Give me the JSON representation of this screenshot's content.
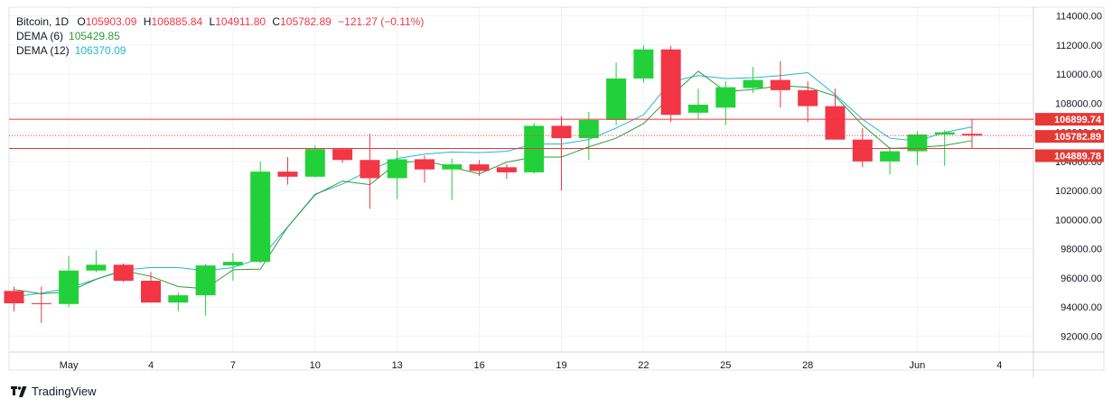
{
  "legend": {
    "symbol": "Bitcoin, 1D",
    "o_label": "O",
    "o_value": "105903.09",
    "h_label": "H",
    "h_value": "106885.84",
    "l_label": "L",
    "l_value": "104911.80",
    "c_label": "C",
    "c_value": "105782.89",
    "change": "−121.27 (−0.11%)",
    "dema6_label": "DEMA (6)",
    "dema6_value": "105429.85",
    "dema12_label": "DEMA (12)",
    "dema12_value": "106370.09"
  },
  "brand": {
    "name": "TradingView",
    "icon": "tradingview-logo-icon"
  },
  "colors": {
    "up": "#22d13a",
    "down": "#f23645",
    "dema6": "#2e9c3a",
    "dema12": "#22b8cf",
    "price_line": "#e53935",
    "grid": "#f0f3fa"
  },
  "chart_data": {
    "type": "candlestick",
    "x_ticks": [
      {
        "i": 2,
        "label": "May"
      },
      {
        "i": 5,
        "label": "4"
      },
      {
        "i": 8,
        "label": "7"
      },
      {
        "i": 11,
        "label": "10"
      },
      {
        "i": 14,
        "label": "13"
      },
      {
        "i": 17,
        "label": "16"
      },
      {
        "i": 20,
        "label": "19"
      },
      {
        "i": 23,
        "label": "22"
      },
      {
        "i": 26,
        "label": "25"
      },
      {
        "i": 29,
        "label": "28"
      },
      {
        "i": 33,
        "label": "Jun"
      },
      {
        "i": 36,
        "label": "4"
      }
    ],
    "y_ticks": [
      "92000.00",
      "94000.00",
      "96000.00",
      "98000.00",
      "100000.00",
      "102000.00",
      "104000.00",
      "106000.00",
      "108000.00",
      "110000.00",
      "112000.00",
      "114000.00"
    ],
    "ylim": [
      90900,
      114600
    ],
    "candles": [
      {
        "o": 95100,
        "h": 95400,
        "l": 93700,
        "c": 94250
      },
      {
        "o": 94250,
        "h": 95400,
        "l": 92900,
        "c": 94200
      },
      {
        "o": 94200,
        "h": 97500,
        "l": 94000,
        "c": 96500
      },
      {
        "o": 96500,
        "h": 97900,
        "l": 96400,
        "c": 96900
      },
      {
        "o": 96900,
        "h": 97000,
        "l": 95700,
        "c": 95800
      },
      {
        "o": 95800,
        "h": 96400,
        "l": 94300,
        "c": 94300
      },
      {
        "o": 94300,
        "h": 95000,
        "l": 93700,
        "c": 94800
      },
      {
        "o": 94800,
        "h": 96950,
        "l": 93400,
        "c": 96850
      },
      {
        "o": 96850,
        "h": 97700,
        "l": 95800,
        "c": 97100
      },
      {
        "o": 97100,
        "h": 104000,
        "l": 97000,
        "c": 103300
      },
      {
        "o": 103300,
        "h": 104300,
        "l": 102400,
        "c": 102950
      },
      {
        "o": 102950,
        "h": 105100,
        "l": 102900,
        "c": 104850
      },
      {
        "o": 104850,
        "h": 104900,
        "l": 103900,
        "c": 104100
      },
      {
        "o": 104100,
        "h": 105900,
        "l": 100750,
        "c": 102850
      },
      {
        "o": 102850,
        "h": 104800,
        "l": 101400,
        "c": 104150
      },
      {
        "o": 104150,
        "h": 104400,
        "l": 102550,
        "c": 103450
      },
      {
        "o": 103450,
        "h": 104200,
        "l": 101350,
        "c": 103800
      },
      {
        "o": 103800,
        "h": 104100,
        "l": 103000,
        "c": 103350
      },
      {
        "o": 103600,
        "h": 103800,
        "l": 102800,
        "c": 103250
      },
      {
        "o": 103250,
        "h": 106650,
        "l": 103150,
        "c": 106450
      },
      {
        "o": 106450,
        "h": 107100,
        "l": 102000,
        "c": 105600
      },
      {
        "o": 105600,
        "h": 107400,
        "l": 104100,
        "c": 106850
      },
      {
        "o": 106850,
        "h": 110800,
        "l": 106500,
        "c": 109700
      },
      {
        "o": 109700,
        "h": 112000,
        "l": 109400,
        "c": 111700
      },
      {
        "o": 111700,
        "h": 111950,
        "l": 106700,
        "c": 107200
      },
      {
        "o": 107350,
        "h": 109000,
        "l": 106900,
        "c": 107900
      },
      {
        "o": 107700,
        "h": 109500,
        "l": 106500,
        "c": 109100
      },
      {
        "o": 109050,
        "h": 110500,
        "l": 108700,
        "c": 109600
      },
      {
        "o": 109600,
        "h": 110900,
        "l": 107700,
        "c": 108900
      },
      {
        "o": 108900,
        "h": 109500,
        "l": 106700,
        "c": 107800
      },
      {
        "o": 107800,
        "h": 109000,
        "l": 105500,
        "c": 105500
      },
      {
        "o": 105500,
        "h": 106300,
        "l": 103600,
        "c": 104000
      },
      {
        "o": 104000,
        "h": 105000,
        "l": 103100,
        "c": 104700
      },
      {
        "o": 104700,
        "h": 106100,
        "l": 103750,
        "c": 105850
      },
      {
        "o": 105850,
        "h": 106150,
        "l": 103700,
        "c": 106000
      },
      {
        "o": 105900,
        "h": 106885.84,
        "l": 104911.8,
        "c": 105782.89
      }
    ],
    "dema6": [
      95200,
      94900,
      95050,
      95900,
      96500,
      96100,
      95400,
      95250,
      96550,
      96600,
      99500,
      101700,
      102650,
      102400,
      103900,
      104050,
      103600,
      103150,
      103950,
      104300,
      104300,
      105000,
      105600,
      106600,
      108500,
      110200,
      108800,
      108950,
      109200,
      109100,
      108500,
      106500,
      104900,
      104950,
      105100,
      105429.85
    ],
    "dema12": [
      94700,
      94950,
      95300,
      95900,
      96550,
      96700,
      96700,
      96500,
      96700,
      97350,
      99500,
      101750,
      102450,
      103400,
      104200,
      104500,
      104650,
      104600,
      104700,
      105200,
      105200,
      105500,
      106300,
      107200,
      109500,
      109900,
      109700,
      109750,
      109900,
      110100,
      108600,
      106900,
      105600,
      105400,
      106000,
      106370.09
    ],
    "price_lines": [
      {
        "value": 106899.74,
        "label": "106899.74"
      },
      {
        "value": 105782.89,
        "label": "105782.89"
      },
      {
        "value": 104889.78,
        "label": "104889.78"
      }
    ]
  }
}
